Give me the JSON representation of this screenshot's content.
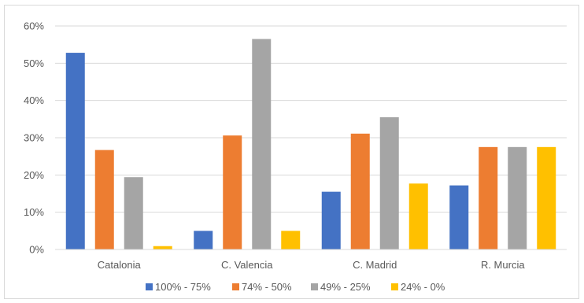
{
  "chart_data": {
    "type": "bar",
    "title": "",
    "xlabel": "",
    "ylabel": "",
    "ylim": [
      0,
      60
    ],
    "yticks": [
      "0%",
      "10%",
      "20%",
      "30%",
      "40%",
      "50%",
      "60%"
    ],
    "ytick_values": [
      0,
      10,
      20,
      30,
      40,
      50,
      60
    ],
    "grid": true,
    "legend_position": "bottom",
    "categories": [
      "Catalonia",
      "C. Valencia",
      "C. Madrid",
      "R. Murcia"
    ],
    "series": [
      {
        "name": "100% - 75%",
        "color": "#4472c4",
        "values": [
          52.8,
          5.0,
          15.5,
          17.2
        ]
      },
      {
        "name": "74% - 50%",
        "color": "#ed7d31",
        "values": [
          26.7,
          30.6,
          31.1,
          27.5
        ]
      },
      {
        "name": "49% - 25%",
        "color": "#a5a5a5",
        "values": [
          19.4,
          56.5,
          35.5,
          27.5
        ]
      },
      {
        "name": "24% - 0%",
        "color": "#ffc000",
        "values": [
          0.9,
          5.0,
          17.7,
          27.5
        ]
      }
    ]
  }
}
